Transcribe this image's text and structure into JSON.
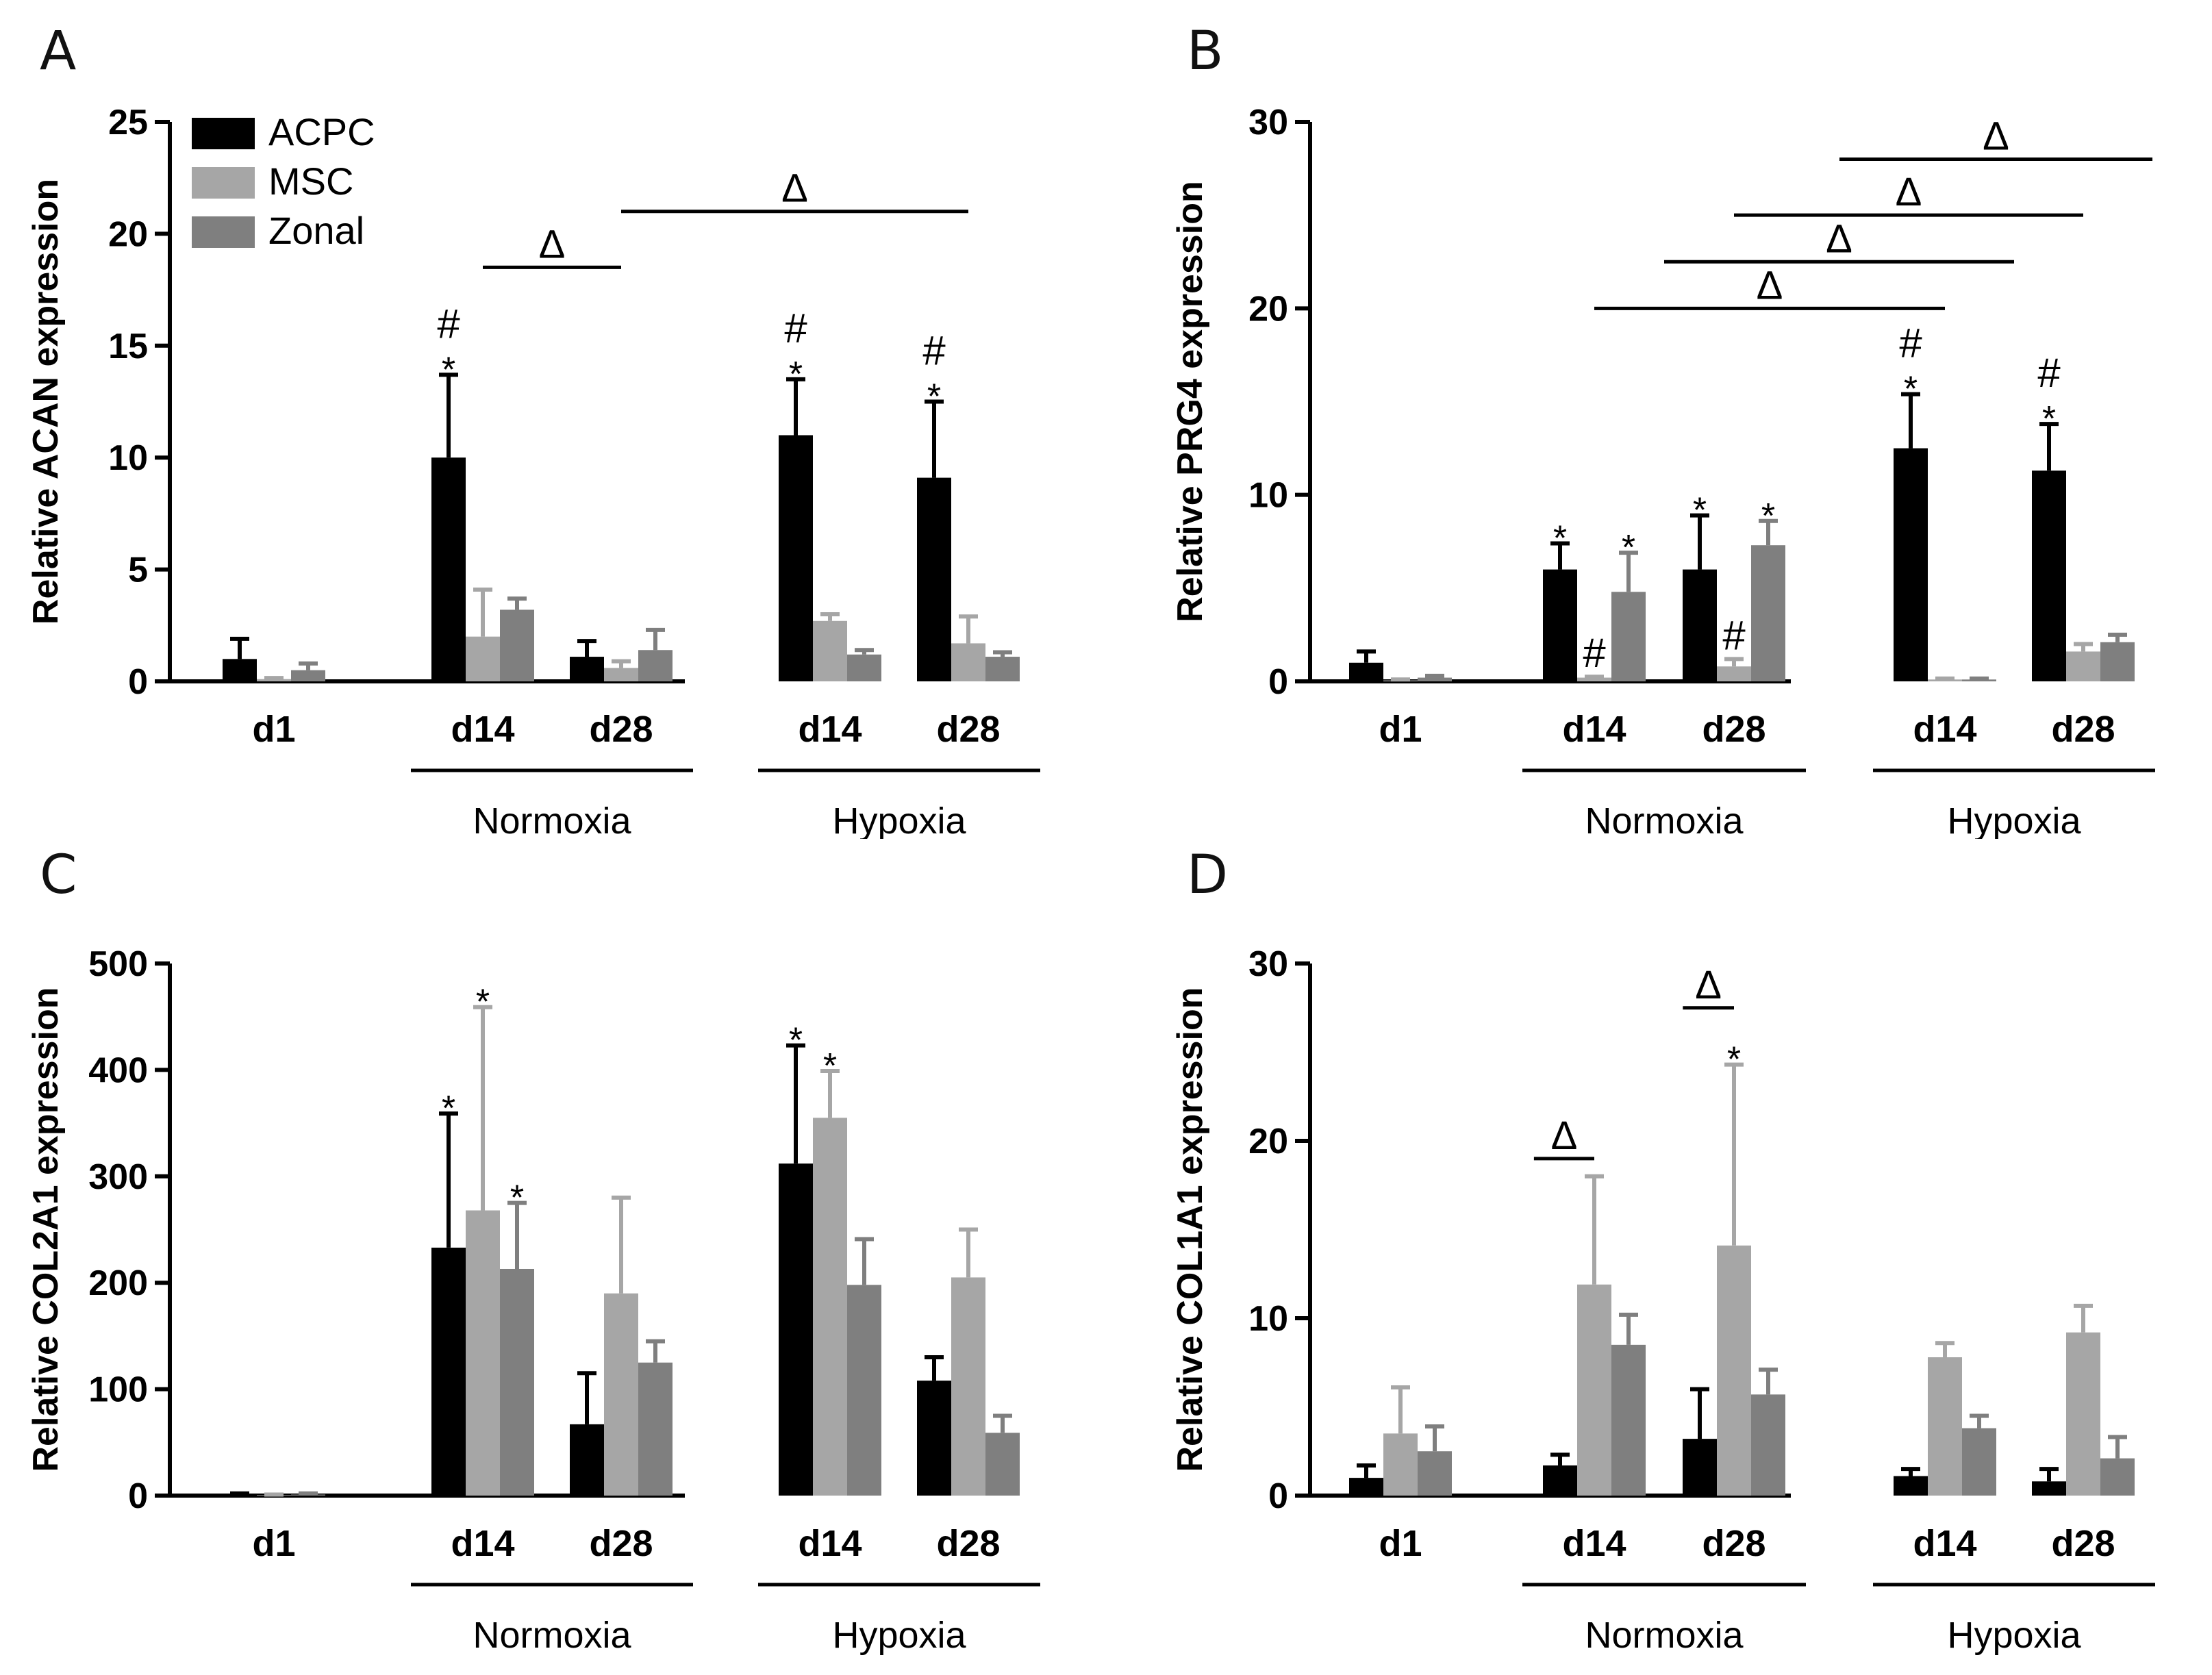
{
  "colors": {
    "ACPC": "#000000",
    "MSC": "#a6a6a6",
    "Zonal": "#7f7f7f",
    "axis": "#000000"
  },
  "legend": {
    "items": [
      {
        "key": "ACPC",
        "label": "ACPC"
      },
      {
        "key": "MSC",
        "label": "MSC"
      },
      {
        "key": "Zonal",
        "label": "Zonal"
      }
    ]
  },
  "chart_data": [
    {
      "panel": "A",
      "type": "bar",
      "ylabel": "Relative ACAN expression",
      "ylim": [
        0,
        25
      ],
      "yticks": [
        0,
        5,
        10,
        15,
        20,
        25
      ],
      "categories": [
        "d1",
        "d14",
        "d28",
        "d14",
        "d28"
      ],
      "groups": [
        {
          "label": "Normoxia",
          "categories": [
            1,
            2
          ]
        },
        {
          "label": "Hypoxia",
          "categories": [
            3,
            4
          ]
        }
      ],
      "series": [
        {
          "name": "ACPC",
          "values": [
            1.0,
            10.0,
            1.1,
            11.0,
            9.1
          ],
          "errors": [
            0.9,
            3.7,
            0.7,
            2.5,
            3.4
          ]
        },
        {
          "name": "MSC",
          "values": [
            0.1,
            2.0,
            0.6,
            2.7,
            1.7
          ],
          "errors": [
            0.05,
            2.1,
            0.3,
            0.3,
            1.2
          ]
        },
        {
          "name": "Zonal",
          "values": [
            0.5,
            3.2,
            1.4,
            1.2,
            1.1
          ],
          "errors": [
            0.3,
            0.5,
            0.9,
            0.2,
            0.2
          ]
        }
      ],
      "annotations": [
        {
          "cat": 1,
          "series": 0,
          "text": [
            "#",
            "*"
          ]
        },
        {
          "cat": 3,
          "series": 0,
          "text": [
            "#",
            "*"
          ]
        },
        {
          "cat": 4,
          "series": 0,
          "text": [
            "#",
            "*"
          ]
        }
      ],
      "brackets": [
        {
          "from": 1.0,
          "to": 2.0,
          "y": 18.5,
          "label": "Δ"
        },
        {
          "from": 2.0,
          "to": 4.0,
          "y": 21.0,
          "label": "Δ"
        }
      ],
      "show_legend": true
    },
    {
      "panel": "B",
      "type": "bar",
      "ylabel": "Relative PRG4 expression",
      "ylim": [
        0,
        30
      ],
      "yticks": [
        0,
        10,
        20,
        30
      ],
      "categories": [
        "d1",
        "d14",
        "d28",
        "d14",
        "d28"
      ],
      "groups": [
        {
          "label": "Normoxia",
          "categories": [
            1,
            2
          ]
        },
        {
          "label": "Hypoxia",
          "categories": [
            3,
            4
          ]
        }
      ],
      "series": [
        {
          "name": "ACPC",
          "values": [
            1.0,
            6.0,
            6.0,
            12.5,
            11.3
          ],
          "errors": [
            0.6,
            1.4,
            2.9,
            2.9,
            2.5
          ]
        },
        {
          "name": "MSC",
          "values": [
            0.05,
            0.2,
            0.8,
            0.1,
            1.6
          ],
          "errors": [
            0.05,
            0.05,
            0.4,
            0.05,
            0.4
          ]
        },
        {
          "name": "Zonal",
          "values": [
            0.2,
            4.8,
            7.3,
            0.1,
            2.1
          ],
          "errors": [
            0.1,
            2.1,
            1.3,
            0.05,
            0.4
          ]
        }
      ],
      "annotations": [
        {
          "cat": 1,
          "series": 0,
          "text": [
            "*"
          ]
        },
        {
          "cat": 1,
          "series": 1,
          "text": [
            "#"
          ]
        },
        {
          "cat": 1,
          "series": 2,
          "text": [
            "*"
          ]
        },
        {
          "cat": 2,
          "series": 0,
          "text": [
            "*"
          ]
        },
        {
          "cat": 2,
          "series": 1,
          "text": [
            "#"
          ]
        },
        {
          "cat": 2,
          "series": 2,
          "text": [
            "*"
          ]
        },
        {
          "cat": 3,
          "series": 0,
          "text": [
            "#",
            "*"
          ]
        },
        {
          "cat": 4,
          "series": 0,
          "text": [
            "#",
            "*"
          ]
        }
      ],
      "brackets": [
        {
          "from": 1.0,
          "to": 3.0,
          "y": 20.0,
          "label": "Δ"
        },
        {
          "from": 1.5,
          "to": 3.5,
          "y": 22.5,
          "label": "Δ"
        },
        {
          "from": 2.0,
          "to": 4.0,
          "y": 25.0,
          "label": "Δ"
        },
        {
          "from": 2.5,
          "to": 4.5,
          "y": 28.0,
          "label": "Δ"
        }
      ],
      "show_legend": false
    },
    {
      "panel": "C",
      "type": "bar",
      "ylabel": "Relative COL2A1 expression",
      "ylim": [
        0,
        500
      ],
      "yticks": [
        0,
        100,
        200,
        300,
        400,
        500
      ],
      "categories": [
        "d1",
        "d14",
        "d28",
        "d14",
        "d28"
      ],
      "groups": [
        {
          "label": "Normoxia",
          "categories": [
            1,
            2
          ]
        },
        {
          "label": "Hypoxia",
          "categories": [
            3,
            4
          ]
        }
      ],
      "series": [
        {
          "name": "ACPC",
          "values": [
            1,
            233,
            67,
            312,
            108
          ],
          "errors": [
            1,
            126,
            48,
            111,
            22
          ]
        },
        {
          "name": "MSC",
          "values": [
            0.5,
            268,
            190,
            355,
            205
          ],
          "errors": [
            0.5,
            191,
            90,
            44,
            45
          ]
        },
        {
          "name": "Zonal",
          "values": [
            1,
            213,
            125,
            198,
            59
          ],
          "errors": [
            1,
            62,
            20,
            43,
            16
          ]
        }
      ],
      "annotations": [
        {
          "cat": 1,
          "series": 0,
          "text": [
            "*"
          ]
        },
        {
          "cat": 1,
          "series": 1,
          "text": [
            "*"
          ]
        },
        {
          "cat": 1,
          "series": 2,
          "text": [
            "*"
          ]
        },
        {
          "cat": 3,
          "series": 0,
          "text": [
            "*"
          ]
        },
        {
          "cat": 3,
          "series": 1,
          "text": [
            "*"
          ]
        }
      ],
      "brackets": [],
      "show_legend": false
    },
    {
      "panel": "D",
      "type": "bar",
      "ylabel": "Relative COL1A1 expression",
      "ylim": [
        0,
        30
      ],
      "yticks": [
        0,
        10,
        20,
        30
      ],
      "categories": [
        "d1",
        "d14",
        "d28",
        "d14",
        "d28"
      ],
      "groups": [
        {
          "label": "Normoxia",
          "categories": [
            1,
            2
          ]
        },
        {
          "label": "Hypoxia",
          "categories": [
            3,
            4
          ]
        }
      ],
      "series": [
        {
          "name": "ACPC",
          "values": [
            1.0,
            1.7,
            3.2,
            1.1,
            0.8
          ],
          "errors": [
            0.7,
            0.6,
            2.8,
            0.4,
            0.7
          ]
        },
        {
          "name": "MSC",
          "values": [
            3.5,
            11.9,
            14.1,
            7.8,
            9.2
          ],
          "errors": [
            2.6,
            6.1,
            10.2,
            0.8,
            1.5
          ]
        },
        {
          "name": "Zonal",
          "values": [
            2.5,
            8.5,
            5.7,
            3.8,
            2.1
          ],
          "errors": [
            1.4,
            1.7,
            1.4,
            0.7,
            1.2
          ]
        }
      ],
      "annotations": [
        {
          "cat": 2,
          "series": 1,
          "text": [
            "*"
          ]
        }
      ],
      "brackets": [
        {
          "from": 0.83,
          "to": 1.0,
          "y": 19.0,
          "label": "Δ"
        },
        {
          "from": 1.83,
          "to": 2.0,
          "y": 27.5,
          "label": "Δ"
        }
      ],
      "show_legend": false
    }
  ]
}
